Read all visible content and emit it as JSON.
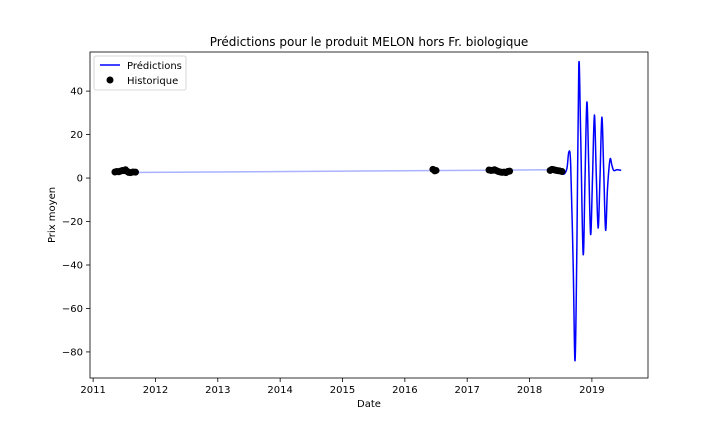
{
  "chart_data": {
    "type": "line",
    "title": "Prédictions pour le produit MELON hors Fr. biologique",
    "xlabel": "Date",
    "ylabel": "Prix moyen",
    "xlim": [
      2010.95,
      2019.9
    ],
    "ylim": [
      -92,
      58
    ],
    "grid": false,
    "legend_position": "top-left",
    "x_ticks": [
      2011,
      2012,
      2013,
      2014,
      2015,
      2016,
      2017,
      2018,
      2019
    ],
    "y_ticks": [
      40,
      20,
      0,
      -20,
      -40,
      -60,
      -80
    ],
    "y_tick_labels": [
      "40",
      "20",
      "0",
      "−20",
      "−40",
      "−60",
      "−80"
    ],
    "series": [
      {
        "name": "Prédictions",
        "kind": "line",
        "color": "#0000ff",
        "trend": [
          [
            2011.35,
            2.5
          ],
          [
            2018.35,
            3.8
          ]
        ],
        "trend_color": "#a9b3ff",
        "points": [
          [
            2018.3,
            3.0
          ],
          [
            2018.4,
            3.1
          ],
          [
            2018.48,
            2.8
          ],
          [
            2018.55,
            1.8
          ],
          [
            2018.6,
            4.5
          ],
          [
            2018.63,
            12.0
          ],
          [
            2018.66,
            6.0
          ],
          [
            2018.7,
            -40.0
          ],
          [
            2018.73,
            -84.0
          ],
          [
            2018.76,
            -30.0
          ],
          [
            2018.79,
            52.0
          ],
          [
            2018.82,
            20.0
          ],
          [
            2018.86,
            -35.0
          ],
          [
            2018.89,
            0.0
          ],
          [
            2018.92,
            35.0
          ],
          [
            2018.95,
            5.0
          ],
          [
            2018.98,
            -26.0
          ],
          [
            2019.01,
            0.0
          ],
          [
            2019.04,
            29.0
          ],
          [
            2019.07,
            2.0
          ],
          [
            2019.1,
            -23.0
          ],
          [
            2019.13,
            0.0
          ],
          [
            2019.16,
            28.0
          ],
          [
            2019.19,
            3.0
          ],
          [
            2019.22,
            -24.0
          ],
          [
            2019.25,
            -5.0
          ],
          [
            2019.29,
            8.5
          ],
          [
            2019.32,
            6.0
          ],
          [
            2019.35,
            3.5
          ],
          [
            2019.4,
            3.8
          ],
          [
            2019.47,
            3.6
          ]
        ]
      },
      {
        "name": "Historique",
        "kind": "scatter",
        "color": "#000000",
        "points": [
          [
            2011.35,
            2.8
          ],
          [
            2011.38,
            3.0
          ],
          [
            2011.41,
            2.9
          ],
          [
            2011.44,
            3.2
          ],
          [
            2011.47,
            3.5
          ],
          [
            2011.5,
            3.4
          ],
          [
            2011.52,
            3.8
          ],
          [
            2011.55,
            3.0
          ],
          [
            2011.57,
            2.6
          ],
          [
            2011.6,
            2.5
          ],
          [
            2011.64,
            2.8
          ],
          [
            2011.68,
            2.7
          ],
          [
            2016.45,
            4.0
          ],
          [
            2016.48,
            3.3
          ],
          [
            2016.5,
            3.5
          ],
          [
            2017.35,
            3.7
          ],
          [
            2017.38,
            3.5
          ],
          [
            2017.41,
            3.6
          ],
          [
            2017.44,
            3.8
          ],
          [
            2017.47,
            3.4
          ],
          [
            2017.5,
            3.0
          ],
          [
            2017.53,
            2.8
          ],
          [
            2017.56,
            2.6
          ],
          [
            2017.59,
            2.7
          ],
          [
            2017.62,
            2.5
          ],
          [
            2017.65,
            3.0
          ],
          [
            2017.68,
            3.2
          ],
          [
            2018.33,
            3.5
          ],
          [
            2018.36,
            4.0
          ],
          [
            2018.39,
            3.8
          ],
          [
            2018.42,
            3.6
          ],
          [
            2018.45,
            3.4
          ],
          [
            2018.48,
            3.3
          ],
          [
            2018.52,
            3.0
          ]
        ]
      }
    ]
  }
}
